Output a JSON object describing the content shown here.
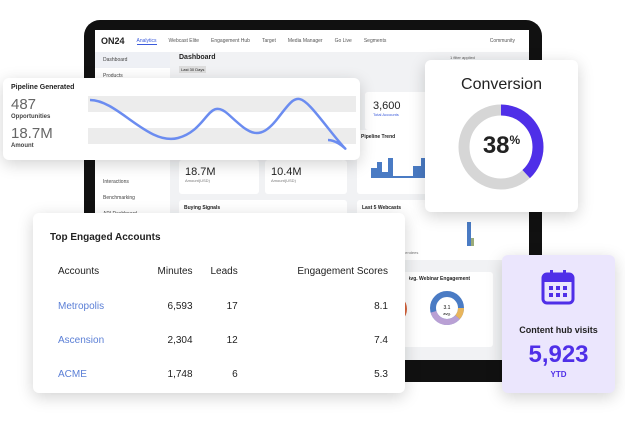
{
  "app": {
    "logo": "ON24",
    "nav": [
      "Analytics",
      "Webcast Elite",
      "Engagement Hub",
      "Target",
      "Media Manager",
      "Go Live",
      "Segments"
    ],
    "community": "Community",
    "filter": "1 filter applied"
  },
  "sidebar": [
    "Dashboard",
    "Products",
    "Interactions",
    "Benchmarking",
    "API Dashboard"
  ],
  "dashboard": {
    "title": "Dashboard",
    "range": "Last 30 Days",
    "total_accounts": "3,600",
    "total_accounts_label": "Total Accounts",
    "pipeline_trend": "Pipeline Trend",
    "amt1": "18.7M",
    "amt2": "10.4M",
    "amt_label": "Amount(USD)",
    "buying_signals": "Buying Signals",
    "last5": "Last 5 Webcasts",
    "legend": [
      "Registrants",
      "Attendees"
    ],
    "avg_webinar": "Avg. Webinar Engagement",
    "donut_center": "3.1",
    "donut_sub": "avg."
  },
  "pipeline": {
    "title": "Pipeline Generated",
    "opps": "487",
    "opps_label": "Opportunities",
    "amount": "18.7M",
    "amount_label": "Amount"
  },
  "conversion": {
    "title": "Conversion",
    "value": 38,
    "unit": "%",
    "color": "#4f2fe8"
  },
  "accounts": {
    "title": "Top Engaged Accounts",
    "headers": [
      "Accounts",
      "Minutes",
      "Leads",
      "Engagement Scores"
    ],
    "rows": [
      [
        "Metropolis",
        "6,593",
        "17",
        "8.1"
      ],
      [
        "Ascension",
        "2,304",
        "12",
        "7.4"
      ],
      [
        "ACME",
        "1,748",
        "6",
        "5.3"
      ]
    ]
  },
  "hub": {
    "title": "Content hub visits",
    "value": "5,923",
    "sub": "YTD",
    "icon": "calendar-icon",
    "color": "#4f2fe8"
  }
}
